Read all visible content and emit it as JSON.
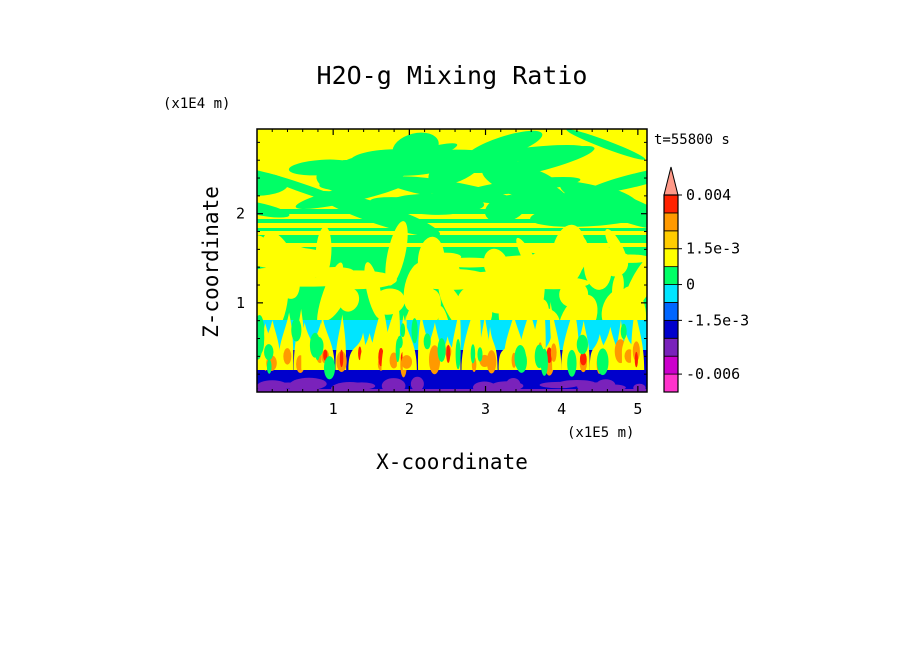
{
  "chart_data": {
    "type": "heatmap",
    "title": "H2O-g Mixing Ratio",
    "time_label": "t=55800 s",
    "xlabel": "X-coordinate",
    "ylabel": "Z-coordinate",
    "x_scale_label": "(x1E5 m)",
    "y_scale_label": "(x1E4 m)",
    "xlim": [
      0,
      5.12
    ],
    "ylim": [
      0,
      2.95
    ],
    "x_ticks": [
      1,
      2,
      3,
      4,
      5
    ],
    "y_ticks": [
      1,
      2
    ],
    "x_tick_labels": [
      "1",
      "2",
      "3",
      "4",
      "5"
    ],
    "y_tick_labels": [
      "1",
      "2"
    ],
    "colorbar": {
      "levels": [
        {
          "from": null,
          "to": -0.006,
          "color": "#ff33cc"
        },
        {
          "from": -0.006,
          "to": -0.0045,
          "color": "#cc00cc"
        },
        {
          "from": -0.0045,
          "to": -0.003,
          "color": "#7a22bb"
        },
        {
          "from": -0.003,
          "to": -0.0015,
          "color": "#0000cc"
        },
        {
          "from": -0.0015,
          "to": -0.00075,
          "color": "#0066ff"
        },
        {
          "from": -0.00075,
          "to": 0,
          "color": "#00e5ff"
        },
        {
          "from": 0,
          "to": 0.00075,
          "color": "#00ff66"
        },
        {
          "from": 0.00075,
          "to": 0.0015,
          "color": "#ffff00"
        },
        {
          "from": 0.0015,
          "to": 0.0025,
          "color": "#ffcc00"
        },
        {
          "from": 0.0025,
          "to": 0.003,
          "color": "#ff9900"
        },
        {
          "from": 0.003,
          "to": 0.004,
          "color": "#ff2200"
        },
        {
          "from": 0.004,
          "to": null,
          "color": "#ff9988"
        }
      ],
      "labels": [
        "0.004",
        "1.5e-3",
        "0",
        "-1.5e-3",
        "-0.006"
      ],
      "extend": "max"
    },
    "colors": {
      "yellow": "#ffff00",
      "green": "#00ff66",
      "cyan": "#00e5ff",
      "blue": "#0000cc",
      "purple": "#7a22bb",
      "orange": "#ff9900",
      "red": "#ff2200"
    }
  }
}
